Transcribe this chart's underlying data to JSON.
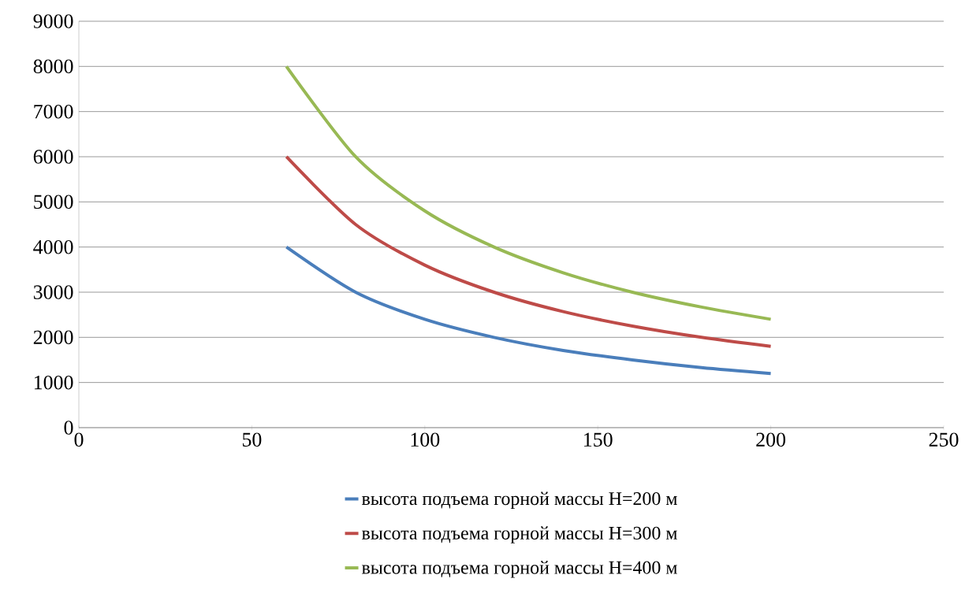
{
  "chart_data": {
    "type": "line",
    "x": [
      60,
      80,
      100,
      120,
      140,
      160,
      180,
      200
    ],
    "series": [
      {
        "name": "высота подъема горной массы H=200 м",
        "color": "#4a7ebb",
        "values": [
          4000,
          3000,
          2400,
          2000,
          1710,
          1500,
          1330,
          1200
        ]
      },
      {
        "name": "высота подъема горной массы H=300 м",
        "color": "#be4b48",
        "values": [
          6000,
          4500,
          3600,
          3000,
          2570,
          2250,
          2000,
          1800
        ]
      },
      {
        "name": "высота подъема горной массы H=400 м",
        "color": "#98b954",
        "values": [
          8000,
          6000,
          4800,
          4000,
          3430,
          3000,
          2670,
          2400
        ]
      }
    ],
    "xlim": [
      0,
      250
    ],
    "xticks": [
      0,
      50,
      100,
      150,
      200,
      250
    ],
    "ylim": [
      0,
      9000
    ],
    "yticks": [
      0,
      1000,
      2000,
      3000,
      4000,
      5000,
      6000,
      7000,
      8000,
      9000
    ],
    "grid": "y",
    "legend": "bottom",
    "marker": "none",
    "line_style": "solid"
  }
}
